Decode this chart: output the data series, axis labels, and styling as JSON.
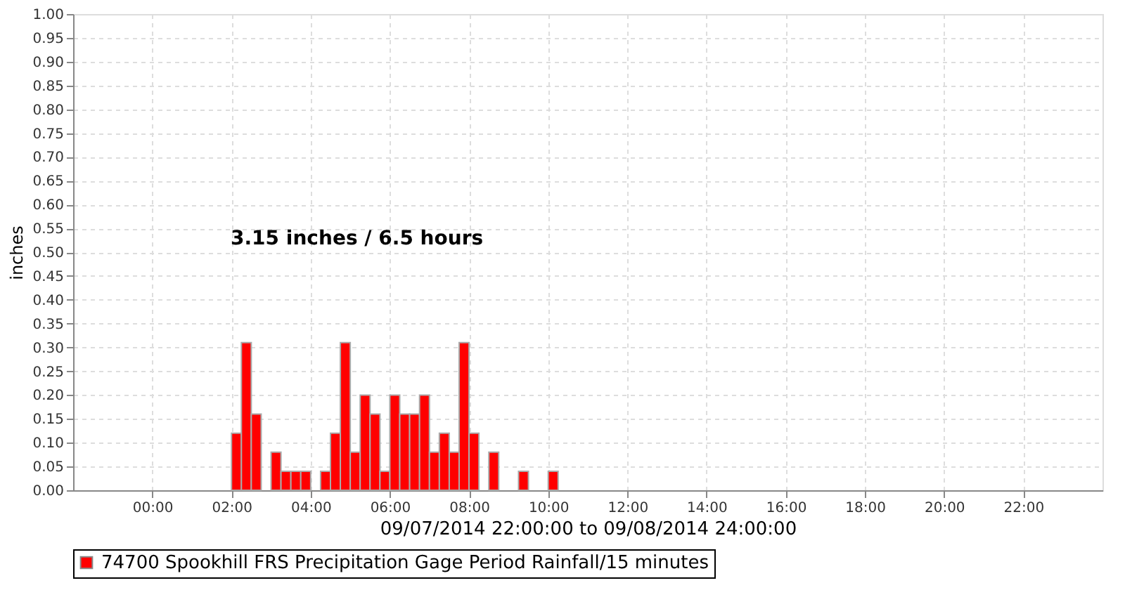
{
  "chart_data": {
    "type": "bar",
    "xlabel": "09/07/2014 22:00:00 to 09/08/2014 24:00:00",
    "ylabel": "inches",
    "annotations": [
      "3.15 inches / 6.5 hours"
    ],
    "x": [
      2,
      2.25,
      2.5,
      3,
      3.25,
      3.5,
      3.75,
      4.25,
      4.5,
      4.75,
      5,
      5.25,
      5.5,
      5.75,
      6,
      6.25,
      6.5,
      6.75,
      7,
      7.25,
      7.5,
      7.75,
      8,
      8.5,
      9.25,
      10
    ],
    "series": [
      {
        "name": "74700 Spookhill FRS Precipitation Gage Period Rainfall/15 minutes",
        "color": "#ff0000",
        "values": [
          0.12,
          0.31,
          0.16,
          0.08,
          0.04,
          0.04,
          0.04,
          0.04,
          0.12,
          0.31,
          0.08,
          0.2,
          0.16,
          0.04,
          0.2,
          0.16,
          0.16,
          0.2,
          0.08,
          0.12,
          0.08,
          0.31,
          0.12,
          0.08,
          0.04,
          0.04
        ]
      }
    ],
    "xlim": [
      -2,
      24
    ],
    "xticks": [
      {
        "value": 0,
        "label": "00:00"
      },
      {
        "value": 2,
        "label": "02:00"
      },
      {
        "value": 4,
        "label": "04:00"
      },
      {
        "value": 6,
        "label": "06:00"
      },
      {
        "value": 8,
        "label": "08:00"
      },
      {
        "value": 10,
        "label": "10:00"
      },
      {
        "value": 12,
        "label": "12:00"
      },
      {
        "value": 14,
        "label": "14:00"
      },
      {
        "value": 16,
        "label": "16:00"
      },
      {
        "value": 18,
        "label": "18:00"
      },
      {
        "value": 20,
        "label": "20:00"
      },
      {
        "value": 22,
        "label": "22:00"
      }
    ],
    "ylim": [
      0,
      1
    ],
    "yticks": [
      {
        "value": 0,
        "label": "0.00"
      },
      0.05,
      {
        "value": 0.1,
        "label": "0.10"
      },
      0.15,
      {
        "value": 0.2,
        "label": "0.20"
      },
      0.25,
      {
        "value": 0.3,
        "label": "0.30"
      },
      0.35,
      {
        "value": 0.4,
        "label": "0.40"
      },
      0.45,
      {
        "value": 0.5,
        "label": "0.50"
      },
      0.55,
      {
        "value": 0.6,
        "label": "0.60"
      },
      0.65,
      {
        "value": 0.7,
        "label": "0.70"
      },
      0.75,
      {
        "value": 0.8,
        "label": "0.80"
      },
      0.85,
      {
        "value": 0.9,
        "label": "0.90"
      },
      0.95,
      {
        "value": 1,
        "label": "1.00"
      }
    ],
    "grid": true,
    "legend": "bottom"
  }
}
